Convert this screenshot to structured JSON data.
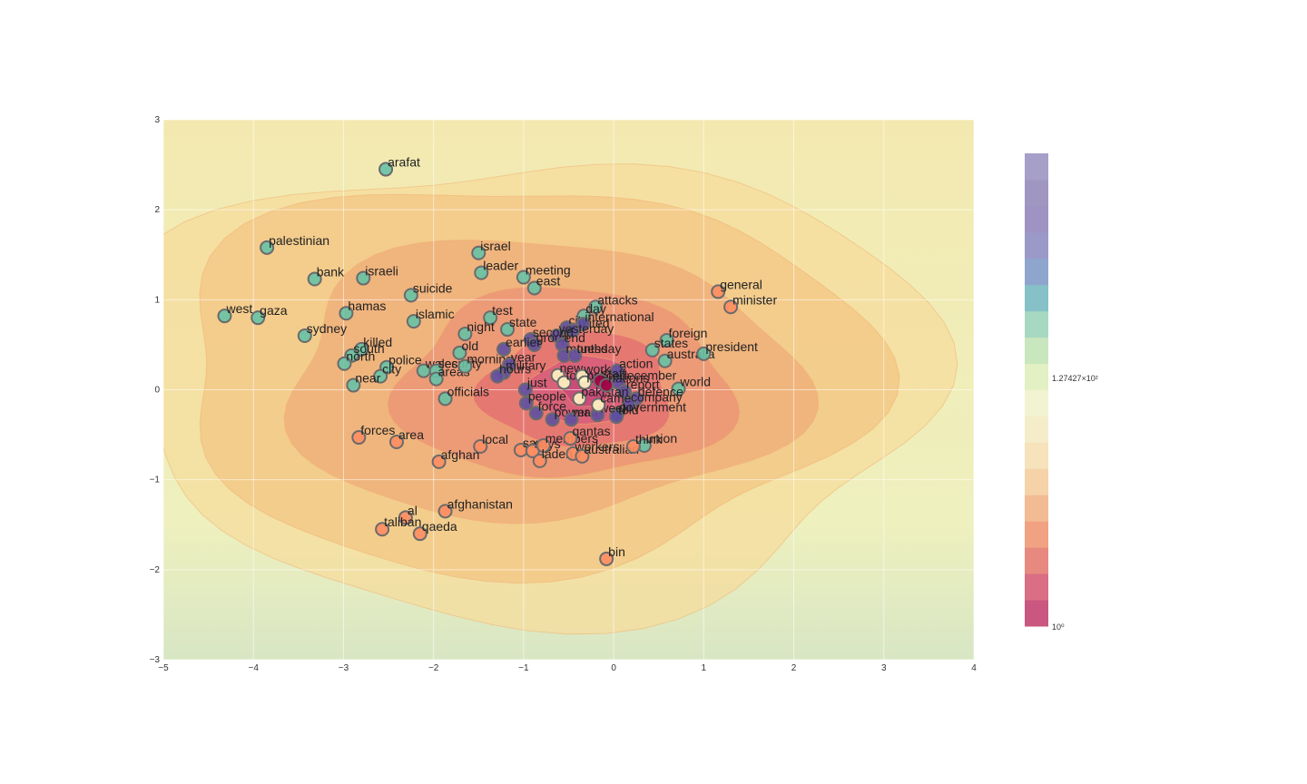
{
  "chart_data": {
    "type": "scatter",
    "title": "",
    "xlabel": "",
    "ylabel": "",
    "xlim": [
      -5,
      4
    ],
    "ylim": [
      -3,
      3
    ],
    "x_ticks": [
      "−5",
      "−4",
      "−3",
      "−2",
      "−1",
      "0",
      "1",
      "2",
      "3",
      "4"
    ],
    "y_ticks": [
      "−3",
      "−2",
      "−1",
      "0",
      "1",
      "2",
      "3"
    ],
    "grid": true,
    "background": "density contour (log color scale)",
    "colorbar": {
      "ticks": [
        "10⁰",
        "1.27427×10²"
      ],
      "colors": [
        "#c9577f",
        "#d96e84",
        "#e7897f",
        "#f0a283",
        "#f2bb93",
        "#f5d2a8",
        "#f6e2bb",
        "#f5ecca",
        "#f2f3d2",
        "#e3f0c3",
        "#c9e7be",
        "#a7d8c0",
        "#86c1c8",
        "#8ea6ce",
        "#9a99c8",
        "#9f93c3",
        "#a096c2",
        "#a69fc8"
      ]
    },
    "point_colors": {
      "green": "#66c2a5",
      "orange": "#fc8d62",
      "purple": "#5e4fa2",
      "cream": "#fff6c4",
      "red": "#9e0142"
    },
    "points": [
      {
        "label": "arafat",
        "x": -2.53,
        "y": 2.45,
        "c": "green"
      },
      {
        "label": "palestinian",
        "x": -3.85,
        "y": 1.58,
        "c": "green"
      },
      {
        "label": "israel",
        "x": -1.5,
        "y": 1.52,
        "c": "green"
      },
      {
        "label": "leader",
        "x": -1.47,
        "y": 1.3,
        "c": "green"
      },
      {
        "label": "meeting",
        "x": -1.0,
        "y": 1.25,
        "c": "green"
      },
      {
        "label": "east",
        "x": -0.88,
        "y": 1.13,
        "c": "green"
      },
      {
        "label": "bank",
        "x": -3.32,
        "y": 1.23,
        "c": "green"
      },
      {
        "label": "israeli",
        "x": -2.78,
        "y": 1.24,
        "c": "green"
      },
      {
        "label": "suicide",
        "x": -2.25,
        "y": 1.05,
        "c": "green"
      },
      {
        "label": "west",
        "x": -4.32,
        "y": 0.82,
        "c": "green"
      },
      {
        "label": "gaza",
        "x": -3.95,
        "y": 0.8,
        "c": "green"
      },
      {
        "label": "hamas",
        "x": -2.97,
        "y": 0.85,
        "c": "green"
      },
      {
        "label": "islamic",
        "x": -2.22,
        "y": 0.76,
        "c": "green"
      },
      {
        "label": "test",
        "x": -1.37,
        "y": 0.8,
        "c": "green"
      },
      {
        "label": "state",
        "x": -1.18,
        "y": 0.67,
        "c": "green"
      },
      {
        "label": "night",
        "x": -1.65,
        "y": 0.62,
        "c": "green"
      },
      {
        "label": "sydney",
        "x": -3.43,
        "y": 0.6,
        "c": "green"
      },
      {
        "label": "killed",
        "x": -2.8,
        "y": 0.45,
        "c": "green"
      },
      {
        "label": "south",
        "x": -2.91,
        "y": 0.38,
        "c": "green"
      },
      {
        "label": "north",
        "x": -2.99,
        "y": 0.29,
        "c": "green"
      },
      {
        "label": "old",
        "x": -1.71,
        "y": 0.41,
        "c": "green"
      },
      {
        "label": "police",
        "x": -2.52,
        "y": 0.25,
        "c": "green"
      },
      {
        "label": "city",
        "x": -2.59,
        "y": 0.15,
        "c": "green"
      },
      {
        "label": "wales",
        "x": -2.11,
        "y": 0.21,
        "c": "green"
      },
      {
        "label": "security",
        "x": -1.97,
        "y": 0.21,
        "c": "green"
      },
      {
        "label": "areas",
        "x": -1.97,
        "y": 0.12,
        "c": "green"
      },
      {
        "label": "near",
        "x": -2.89,
        "y": 0.05,
        "c": "green"
      },
      {
        "label": "morning",
        "x": -1.65,
        "y": 0.26,
        "c": "green"
      },
      {
        "label": "officials",
        "x": -1.87,
        "y": -0.1,
        "c": "green"
      },
      {
        "label": "attacks",
        "x": -0.2,
        "y": 0.92,
        "c": "green"
      },
      {
        "label": "day",
        "x": -0.33,
        "y": 0.82,
        "c": "green"
      },
      {
        "label": "foreign",
        "x": 0.59,
        "y": 0.55,
        "c": "green"
      },
      {
        "label": "states",
        "x": 0.43,
        "y": 0.44,
        "c": "green"
      },
      {
        "label": "australia",
        "x": 0.57,
        "y": 0.32,
        "c": "green"
      },
      {
        "label": "president",
        "x": 1.0,
        "y": 0.4,
        "c": "green"
      },
      {
        "label": "world",
        "x": 0.72,
        "y": 0.01,
        "c": "green"
      },
      {
        "label": "union",
        "x": 0.34,
        "y": -0.62,
        "c": "green"
      },
      {
        "label": "general",
        "x": 1.16,
        "y": 1.09,
        "c": "orange"
      },
      {
        "label": "minister",
        "x": 1.3,
        "y": 0.92,
        "c": "orange"
      },
      {
        "label": "forces",
        "x": -2.83,
        "y": -0.53,
        "c": "orange"
      },
      {
        "label": "area",
        "x": -2.41,
        "y": -0.58,
        "c": "orange"
      },
      {
        "label": "local",
        "x": -1.48,
        "y": -0.63,
        "c": "orange"
      },
      {
        "label": "afghan",
        "x": -1.94,
        "y": -0.8,
        "c": "orange"
      },
      {
        "label": "afghanistan",
        "x": -1.87,
        "y": -1.35,
        "c": "orange"
      },
      {
        "label": "al",
        "x": -2.31,
        "y": -1.42,
        "c": "orange"
      },
      {
        "label": "taliban",
        "x": -2.57,
        "y": -1.55,
        "c": "orange"
      },
      {
        "label": "qaeda",
        "x": -2.15,
        "y": -1.6,
        "c": "orange"
      },
      {
        "label": "bin",
        "x": -0.08,
        "y": -1.88,
        "c": "orange"
      },
      {
        "label": "say",
        "x": -1.03,
        "y": -0.67,
        "c": "orange"
      },
      {
        "label": "says",
        "x": -0.9,
        "y": -0.68,
        "c": "orange"
      },
      {
        "label": "members",
        "x": -0.78,
        "y": -0.62,
        "c": "orange"
      },
      {
        "label": "qantas",
        "x": -0.48,
        "y": -0.54,
        "c": "orange"
      },
      {
        "label": "laden",
        "x": -0.82,
        "y": -0.79,
        "c": "orange"
      },
      {
        "label": "workers",
        "x": -0.45,
        "y": -0.71,
        "c": "orange"
      },
      {
        "label": "australian",
        "x": -0.35,
        "y": -0.74,
        "c": "orange"
      },
      {
        "label": "think",
        "x": 0.22,
        "y": -0.63,
        "c": "orange"
      },
      {
        "label": "city",
        "x": -0.52,
        "y": 0.69,
        "c": "purple"
      },
      {
        "label": "united",
        "x": -0.45,
        "y": 0.66,
        "c": "purple"
      },
      {
        "label": "international",
        "x": -0.34,
        "y": 0.73,
        "c": "purple"
      },
      {
        "label": "yesterday",
        "x": -0.63,
        "y": 0.6,
        "c": "purple"
      },
      {
        "label": "second",
        "x": -0.92,
        "y": 0.56,
        "c": "purple"
      },
      {
        "label": "group",
        "x": -0.88,
        "y": 0.5,
        "c": "purple"
      },
      {
        "label": "end",
        "x": -0.57,
        "y": 0.5,
        "c": "purple"
      },
      {
        "label": "earlier",
        "x": -1.22,
        "y": 0.45,
        "c": "purple"
      },
      {
        "label": "months",
        "x": -0.55,
        "y": 0.38,
        "c": "purple"
      },
      {
        "label": "tuesday",
        "x": -0.43,
        "y": 0.38,
        "c": "purple"
      },
      {
        "label": "year",
        "x": -1.16,
        "y": 0.28,
        "c": "purple"
      },
      {
        "label": "military",
        "x": -1.22,
        "y": 0.19,
        "c": "purple"
      },
      {
        "label": "hours",
        "x": -1.29,
        "y": 0.15,
        "c": "purple"
      },
      {
        "label": "action",
        "x": 0.04,
        "y": 0.21,
        "c": "purple"
      },
      {
        "label": "just",
        "x": -0.98,
        "y": 0.0,
        "c": "purple"
      },
      {
        "label": "people",
        "x": -0.97,
        "y": -0.15,
        "c": "purple"
      },
      {
        "label": "force",
        "x": -0.86,
        "y": -0.26,
        "c": "purple"
      },
      {
        "label": "power",
        "x": -0.68,
        "y": -0.33,
        "c": "purple"
      },
      {
        "label": "man",
        "x": -0.47,
        "y": -0.33,
        "c": "purple"
      },
      {
        "label": "defence",
        "x": 0.25,
        "y": -0.1,
        "c": "purple"
      },
      {
        "label": "company",
        "x": 0.17,
        "y": -0.16,
        "c": "purple"
      },
      {
        "label": "government",
        "x": 0.04,
        "y": -0.27,
        "c": "purple"
      },
      {
        "label": "told",
        "x": 0.03,
        "y": -0.3,
        "c": "purple"
      },
      {
        "label": "week",
        "x": -0.18,
        "y": -0.28,
        "c": "purple"
      },
      {
        "label": "december",
        "x": 0.05,
        "y": 0.08,
        "c": "purple"
      },
      {
        "label": "report",
        "x": 0.12,
        "y": -0.02,
        "c": "purple"
      },
      {
        "label": "new",
        "x": -0.62,
        "y": 0.16,
        "c": "cream"
      },
      {
        "label": "today",
        "x": -0.55,
        "y": 0.08,
        "c": "cream"
      },
      {
        "label": "work",
        "x": -0.35,
        "y": 0.15,
        "c": "cream"
      },
      {
        "label": "police",
        "x": -0.32,
        "y": 0.08,
        "c": "cream"
      },
      {
        "label": "pakistan",
        "x": -0.38,
        "y": -0.1,
        "c": "cream"
      },
      {
        "label": "came",
        "x": -0.17,
        "y": -0.17,
        "c": "cream"
      },
      {
        "label": "staff",
        "x": -0.15,
        "y": 0.1,
        "c": "red"
      },
      {
        "label": "nations",
        "x": -0.08,
        "y": 0.05,
        "c": "red"
      }
    ]
  }
}
